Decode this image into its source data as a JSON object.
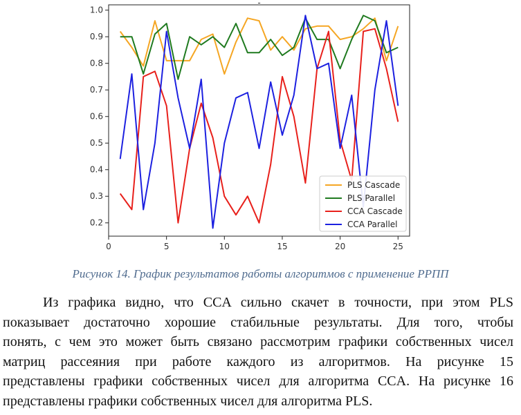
{
  "chart_data": {
    "type": "line",
    "title": "-",
    "xlabel": "",
    "ylabel": "",
    "xlim": [
      0,
      26
    ],
    "ylim": [
      0.15,
      1.02
    ],
    "x_ticks": [
      0,
      5,
      10,
      15,
      20,
      25
    ],
    "y_ticks": [
      0.2,
      0.3,
      0.4,
      0.5,
      0.6,
      0.7,
      0.8,
      0.9,
      1.0
    ],
    "grid": false,
    "legend_position": "lower-right",
    "x": [
      1,
      2,
      3,
      4,
      5,
      6,
      7,
      8,
      9,
      10,
      11,
      12,
      13,
      14,
      15,
      16,
      17,
      18,
      19,
      20,
      21,
      22,
      23,
      24,
      25
    ],
    "series": [
      {
        "name": "PLS Cascade",
        "color": "#f5a623",
        "values": [
          0.92,
          0.86,
          0.79,
          0.96,
          0.81,
          0.81,
          0.81,
          0.89,
          0.91,
          0.76,
          0.88,
          0.97,
          0.96,
          0.85,
          0.9,
          0.85,
          0.93,
          0.94,
          0.94,
          0.89,
          0.9,
          0.93,
          0.97,
          0.81,
          0.94
        ]
      },
      {
        "name": "PLS Parallel",
        "color": "#1f7a1f",
        "values": [
          0.9,
          0.9,
          0.76,
          0.91,
          0.95,
          0.74,
          0.9,
          0.87,
          0.9,
          0.86,
          0.95,
          0.84,
          0.84,
          0.89,
          0.83,
          0.86,
          0.97,
          0.89,
          0.89,
          0.78,
          0.89,
          0.98,
          0.96,
          0.84,
          0.86
        ]
      },
      {
        "name": "CCA Cascade",
        "color": "#e8201b",
        "values": [
          0.31,
          0.25,
          0.75,
          0.77,
          0.64,
          0.2,
          0.48,
          0.65,
          0.52,
          0.3,
          0.23,
          0.3,
          0.2,
          0.42,
          0.75,
          0.6,
          0.35,
          0.78,
          0.92,
          0.51,
          0.36,
          0.92,
          0.93,
          0.78,
          0.58
        ]
      },
      {
        "name": "CCA Parallel",
        "color": "#1c20e0",
        "values": [
          0.44,
          0.76,
          0.25,
          0.5,
          0.92,
          0.67,
          0.48,
          0.74,
          0.18,
          0.5,
          0.67,
          0.69,
          0.48,
          0.73,
          0.53,
          0.68,
          0.98,
          0.78,
          0.8,
          0.48,
          0.68,
          0.26,
          0.7,
          0.96,
          0.64
        ]
      }
    ]
  },
  "caption": "Рисунок 14. График результатов работы алгоритмов с применение РРПП",
  "paragraph_lines": [
    "Из графика видно, что CCA сильно скачет в точности, при этом PLS",
    "показывает достаточно хорошие стабильные результаты. Для того, чтобы",
    "понять, с чем это может быть связано рассмотрим графики собственных чисел",
    "матриц рассеяния при работе каждого из алгоритмов. На рисунке 15",
    "представлены графики собственных чисел для алгоритма CCA. На рисунке 16",
    "представлены графики собственных чисел для алгоритма PLS."
  ]
}
